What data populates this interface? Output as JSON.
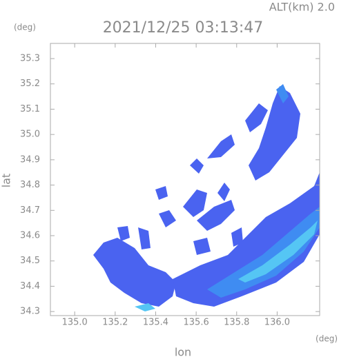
{
  "chart_data": {
    "type": "map",
    "title": "2021/12/25 03:13:47",
    "annotation": "ALT(km) 2.0",
    "x_unit": "(deg)",
    "y_unit": "(deg)",
    "xlabel": "lon",
    "ylabel": "lat",
    "xlim": [
      134.88,
      136.21
    ],
    "ylim": [
      34.284,
      35.36
    ],
    "xticks": [
      {
        "value": 135,
        "label": "135.0"
      },
      135.2,
      135.4,
      135.6,
      135.8,
      {
        "value": 136,
        "label": "136.0"
      }
    ],
    "yticks": [
      34.3,
      34.4,
      34.5,
      34.6,
      34.7,
      34.8,
      34.9,
      {
        "value": 35,
        "label": "35.0"
      },
      35.1,
      35.2,
      35.3
    ]
  }
}
